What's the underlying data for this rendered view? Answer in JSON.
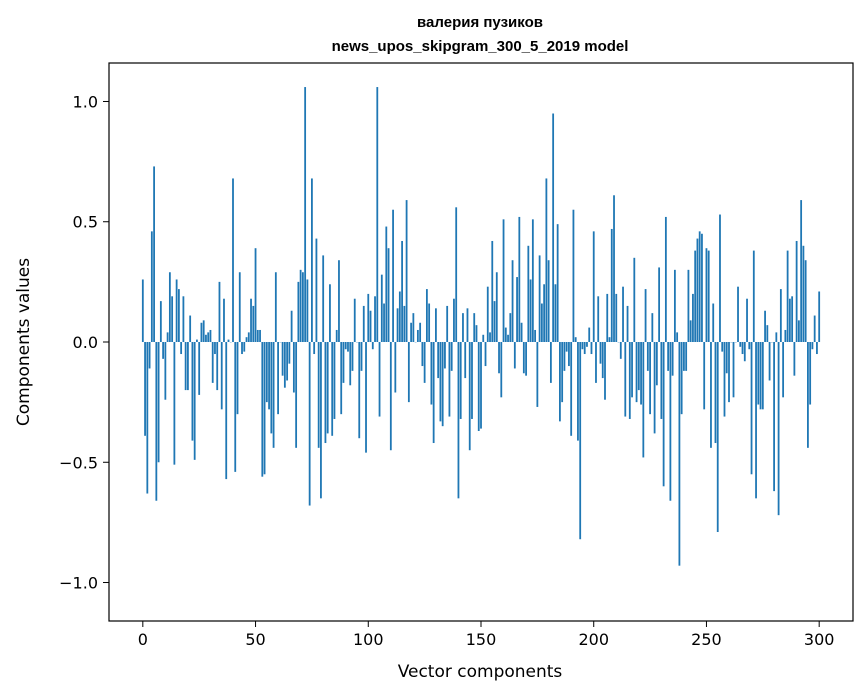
{
  "chart_data": {
    "type": "bar",
    "title_lines": [
      "валерия пузиков",
      "news_upos_skipgram_300_5_2019 model"
    ],
    "xlabel": "Vector components",
    "ylabel": "Components values",
    "xlim": [
      -15,
      315
    ],
    "ylim": [
      -1.16,
      1.16
    ],
    "xticks": [
      0,
      50,
      100,
      150,
      200,
      250,
      300
    ],
    "xtick_labels": [
      "0",
      "50",
      "100",
      "150",
      "200",
      "250",
      "300"
    ],
    "yticks": [
      -1.0,
      -0.5,
      0.0,
      0.5,
      1.0
    ],
    "ytick_labels": [
      "−1.0",
      "−0.5",
      "0.0",
      "0.5",
      "1.0"
    ],
    "grid": false,
    "bar_color": "#1f77b4",
    "values": [
      0.26,
      -0.39,
      -0.63,
      -0.11,
      0.46,
      0.73,
      -0.66,
      -0.5,
      0.17,
      -0.07,
      -0.24,
      0.04,
      0.29,
      0.19,
      -0.51,
      0.26,
      0.22,
      -0.05,
      0.19,
      -0.2,
      -0.2,
      0.11,
      -0.41,
      -0.49,
      0.01,
      -0.22,
      0.08,
      0.09,
      0.03,
      0.04,
      0.05,
      -0.17,
      -0.05,
      -0.2,
      0.25,
      -0.28,
      0.18,
      -0.57,
      0.01,
      0.0,
      0.68,
      -0.54,
      -0.3,
      0.29,
      -0.05,
      -0.04,
      0.02,
      0.04,
      0.18,
      0.15,
      0.39,
      0.05,
      0.05,
      -0.56,
      -0.55,
      -0.25,
      -0.28,
      -0.38,
      -0.44,
      0.29,
      -0.3,
      0.0,
      -0.14,
      -0.19,
      -0.16,
      -0.09,
      0.13,
      -0.21,
      -0.44,
      0.25,
      0.3,
      0.29,
      1.06,
      0.26,
      -0.68,
      0.68,
      -0.05,
      0.43,
      -0.44,
      -0.65,
      0.36,
      -0.42,
      -0.38,
      0.24,
      -0.39,
      -0.32,
      0.05,
      0.34,
      -0.3,
      -0.17,
      -0.03,
      -0.04,
      -0.18,
      -0.12,
      0.18,
      0.0,
      -0.4,
      -0.12,
      0.15,
      -0.46,
      0.2,
      0.13,
      -0.03,
      0.19,
      1.06,
      -0.31,
      0.28,
      0.16,
      0.48,
      0.39,
      -0.45,
      0.55,
      -0.21,
      0.14,
      0.21,
      0.42,
      0.15,
      0.59,
      -0.25,
      0.08,
      0.12,
      0.0,
      0.05,
      0.08,
      -0.1,
      -0.17,
      0.22,
      0.16,
      -0.26,
      -0.42,
      0.14,
      -0.15,
      -0.33,
      -0.35,
      -0.11,
      0.15,
      -0.31,
      -0.12,
      0.18,
      0.56,
      -0.65,
      -0.32,
      0.12,
      -0.15,
      0.14,
      -0.45,
      -0.32,
      0.12,
      0.07,
      -0.37,
      -0.36,
      0.03,
      -0.1,
      0.23,
      0.04,
      0.42,
      0.17,
      0.29,
      -0.13,
      -0.23,
      0.51,
      0.06,
      0.03,
      0.12,
      0.34,
      -0.11,
      0.27,
      0.52,
      0.08,
      -0.13,
      -0.14,
      0.4,
      0.26,
      0.51,
      0.05,
      -0.27,
      0.36,
      0.16,
      0.24,
      0.68,
      0.34,
      -0.17,
      0.95,
      0.24,
      0.49,
      -0.33,
      -0.25,
      -0.12,
      -0.04,
      -0.1,
      -0.39,
      0.55,
      0.02,
      -0.41,
      -0.82,
      -0.03,
      -0.05,
      -0.02,
      0.06,
      -0.05,
      0.46,
      -0.17,
      0.19,
      -0.09,
      -0.15,
      -0.24,
      0.2,
      0.02,
      0.47,
      0.61,
      0.2,
      0.0,
      -0.07,
      0.23,
      -0.31,
      0.15,
      -0.32,
      -0.23,
      0.35,
      -0.25,
      -0.2,
      -0.26,
      -0.48,
      0.22,
      -0.12,
      -0.3,
      0.12,
      -0.38,
      -0.18,
      0.31,
      -0.32,
      -0.6,
      0.52,
      -0.12,
      -0.66,
      -0.14,
      0.3,
      0.04,
      -0.93,
      -0.3,
      -0.12,
      -0.12,
      0.3,
      0.09,
      0.2,
      0.38,
      0.43,
      0.46,
      0.45,
      -0.28,
      0.39,
      0.38,
      -0.44,
      0.16,
      -0.42,
      -0.79,
      0.53,
      -0.04,
      -0.31,
      -0.13,
      -0.25,
      0.0,
      -0.23,
      0.0,
      0.23,
      -0.02,
      -0.05,
      -0.08,
      0.18,
      -0.03,
      -0.55,
      0.38,
      -0.65,
      -0.26,
      -0.28,
      -0.28,
      0.13,
      0.07,
      -0.16,
      0.0,
      -0.62,
      0.04,
      -0.72,
      0.22,
      -0.23,
      0.05,
      0.38,
      0.18,
      0.19,
      -0.14,
      0.42,
      0.09,
      0.59,
      0.4,
      0.34,
      -0.44,
      -0.26,
      -0.03,
      0.11,
      -0.05,
      0.21
    ]
  }
}
